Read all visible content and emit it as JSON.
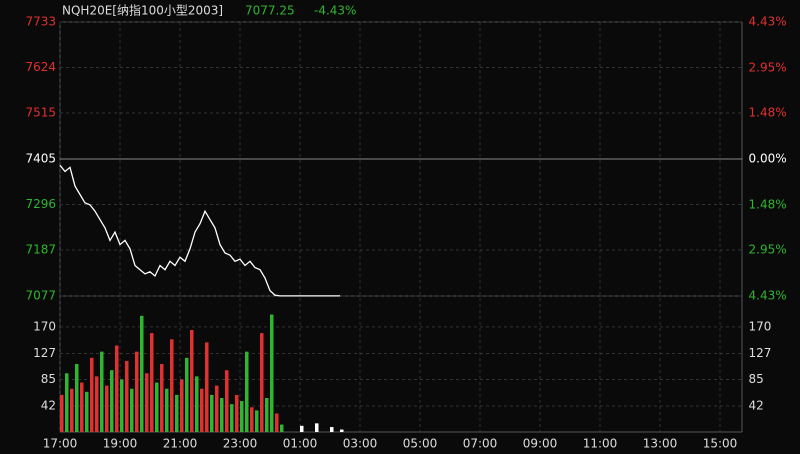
{
  "chart_data": [
    {
      "type": "line",
      "title": "NQH20E[纳指100小型2003]",
      "last": "7077.25",
      "change": "-4.43%",
      "color": "#ffffff",
      "up_color": "#e03030",
      "down_color": "#2fb52f",
      "flat_color": "#ffffff",
      "x": [
        "17:00",
        "17:10",
        "17:20",
        "17:30",
        "17:40",
        "17:50",
        "18:00",
        "18:10",
        "18:20",
        "18:30",
        "18:40",
        "18:50",
        "19:00",
        "19:10",
        "19:20",
        "19:30",
        "19:40",
        "19:50",
        "20:00",
        "20:10",
        "20:20",
        "20:30",
        "20:40",
        "20:50",
        "21:00",
        "21:10",
        "21:20",
        "21:30",
        "21:40",
        "21:50",
        "22:00",
        "22:10",
        "22:20",
        "22:30",
        "22:40",
        "22:50",
        "23:00",
        "23:10",
        "23:20",
        "23:30",
        "23:40",
        "23:50",
        "00:00",
        "00:10",
        "00:20",
        "00:30",
        "00:40",
        "00:50",
        "01:00",
        "01:10",
        "01:20",
        "01:30",
        "01:40",
        "01:50",
        "02:00",
        "02:10",
        "02:20"
      ],
      "values": [
        7390,
        7375,
        7385,
        7340,
        7320,
        7300,
        7295,
        7280,
        7260,
        7240,
        7210,
        7230,
        7200,
        7210,
        7190,
        7150,
        7140,
        7130,
        7135,
        7125,
        7150,
        7140,
        7160,
        7150,
        7170,
        7160,
        7190,
        7230,
        7250,
        7280,
        7260,
        7240,
        7200,
        7180,
        7175,
        7160,
        7165,
        7150,
        7160,
        7145,
        7140,
        7120,
        7090,
        7079,
        7077.25,
        7077.25,
        7077.25,
        7077.25,
        7077.25,
        7077.25,
        7077.25,
        7077.25,
        7077.25,
        7077.25,
        7077.25,
        7077.25,
        7077.25
      ],
      "xlim": [
        "17:00",
        "15:45"
      ],
      "xticks": [
        "17:00",
        "19:00",
        "21:00",
        "23:00",
        "01:00",
        "03:00",
        "05:00",
        "07:00",
        "09:00",
        "11:00",
        "13:00",
        "15:00"
      ],
      "ylim": [
        7077,
        7733
      ],
      "yticks": [
        7733,
        7624,
        7515,
        7405,
        7296,
        7187,
        7077
      ],
      "y2lim": [
        -4.43,
        4.43
      ],
      "y2ticks": [
        {
          "value": 4.43,
          "label": "4.43%"
        },
        {
          "value": 2.95,
          "label": "2.95%"
        },
        {
          "value": 1.48,
          "label": "1.48%"
        },
        {
          "value": 0,
          "label": "0.00%"
        },
        {
          "value": -1.48,
          "label": "1.48%"
        },
        {
          "value": -2.95,
          "label": "2.95%"
        },
        {
          "value": -4.43,
          "label": "4.43%"
        }
      ],
      "grid": true
    },
    {
      "type": "bar",
      "x": [
        "17:00",
        "17:10",
        "17:20",
        "17:30",
        "17:40",
        "17:50",
        "18:00",
        "18:10",
        "18:20",
        "18:30",
        "18:40",
        "18:50",
        "19:00",
        "19:10",
        "19:20",
        "19:30",
        "19:40",
        "19:50",
        "20:00",
        "20:10",
        "20:20",
        "20:30",
        "20:40",
        "20:50",
        "21:00",
        "21:10",
        "21:20",
        "21:30",
        "21:40",
        "21:50",
        "22:00",
        "22:10",
        "22:20",
        "22:30",
        "22:40",
        "22:50",
        "23:00",
        "23:10",
        "23:20",
        "23:30",
        "23:40",
        "23:50",
        "00:00",
        "00:10",
        "00:20",
        "01:00",
        "01:30",
        "02:00",
        "02:20"
      ],
      "values": [
        60,
        95,
        70,
        110,
        80,
        65,
        120,
        90,
        130,
        75,
        100,
        140,
        85,
        115,
        70,
        130,
        188,
        95,
        160,
        80,
        110,
        70,
        150,
        60,
        85,
        120,
        165,
        90,
        70,
        145,
        60,
        75,
        55,
        100,
        45,
        60,
        50,
        130,
        40,
        35,
        160,
        55,
        190,
        30,
        12,
        10,
        14,
        8,
        4
      ],
      "colors": [
        "#e03030",
        "#2fb52f",
        "#e03030",
        "#2fb52f",
        "#e03030",
        "#2fb52f",
        "#e03030",
        "#e03030",
        "#2fb52f",
        "#e03030",
        "#2fb52f",
        "#e03030",
        "#2fb52f",
        "#e03030",
        "#2fb52f",
        "#e03030",
        "#2fb52f",
        "#e03030",
        "#e03030",
        "#2fb52f",
        "#e03030",
        "#2fb52f",
        "#e03030",
        "#2fb52f",
        "#e03030",
        "#2fb52f",
        "#e03030",
        "#2fb52f",
        "#e03030",
        "#e03030",
        "#2fb52f",
        "#e03030",
        "#2fb52f",
        "#e03030",
        "#2fb52f",
        "#e03030",
        "#2fb52f",
        "#2fb52f",
        "#e03030",
        "#2fb52f",
        "#e03030",
        "#2fb52f",
        "#2fb52f",
        "#e03030",
        "#2fb52f",
        "#ffffff",
        "#ffffff",
        "#ffffff",
        "#ffffff"
      ],
      "ylim": [
        0,
        220
      ],
      "yticks": [
        42,
        85,
        127,
        170
      ],
      "grid": true
    }
  ]
}
